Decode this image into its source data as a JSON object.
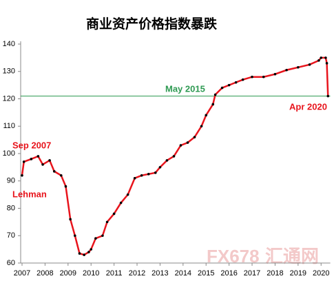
{
  "chart_data": {
    "type": "line",
    "title": "商业资产价格指数暴跌",
    "x": [
      2007.0,
      2007.08,
      2007.4,
      2007.7,
      2007.9,
      2008.2,
      2008.4,
      2008.7,
      2008.9,
      2009.1,
      2009.3,
      2009.5,
      2009.7,
      2009.9,
      2010.0,
      2010.2,
      2010.5,
      2010.7,
      2011.0,
      2011.3,
      2011.6,
      2011.9,
      2012.2,
      2012.5,
      2012.8,
      2013.0,
      2013.3,
      2013.6,
      2013.9,
      2014.2,
      2014.5,
      2014.8,
      2015.0,
      2015.3,
      2015.4,
      2015.7,
      2016.0,
      2016.3,
      2016.6,
      2017.0,
      2017.5,
      2018.0,
      2018.5,
      2019.0,
      2019.5,
      2019.9,
      2020.0,
      2020.2,
      2020.25,
      2020.3
    ],
    "series": [
      {
        "name": "商业资产价格指数",
        "color": "#e8141c",
        "marker_color": "#000000",
        "values": [
          92,
          97,
          98,
          99,
          96,
          97.5,
          93.5,
          92,
          88,
          76,
          70,
          63.5,
          63,
          64,
          65,
          69,
          70,
          75,
          78,
          82,
          85,
          91,
          92,
          92.5,
          93,
          95,
          97.5,
          99,
          103,
          104,
          106,
          110,
          114,
          118,
          121.5,
          124,
          125,
          126,
          127,
          128,
          128,
          129,
          130.5,
          131.5,
          132.5,
          134,
          135,
          135,
          133,
          121
        ]
      }
    ],
    "hline": {
      "value": 121,
      "color": "#2e9a52"
    },
    "annotations": [
      {
        "text": "Sep 2007",
        "color": "#e8141c"
      },
      {
        "text": "Lehman",
        "color": "#e8141c"
      },
      {
        "text": "May 2015",
        "color": "#2e9a52"
      },
      {
        "text": "Apr 2020",
        "color": "#e8141c"
      }
    ],
    "watermark": [
      "FX678",
      "汇通网"
    ],
    "xlim": [
      2007,
      2020.4
    ],
    "xticks": [
      2007,
      2008,
      2009,
      2010,
      2011,
      2012,
      2013,
      2014,
      2015,
      2016,
      2017,
      2018,
      2019,
      2020
    ],
    "ylim": [
      60,
      140
    ],
    "yticks": [
      60,
      70,
      80,
      90,
      100,
      110,
      120,
      130,
      140
    ]
  }
}
